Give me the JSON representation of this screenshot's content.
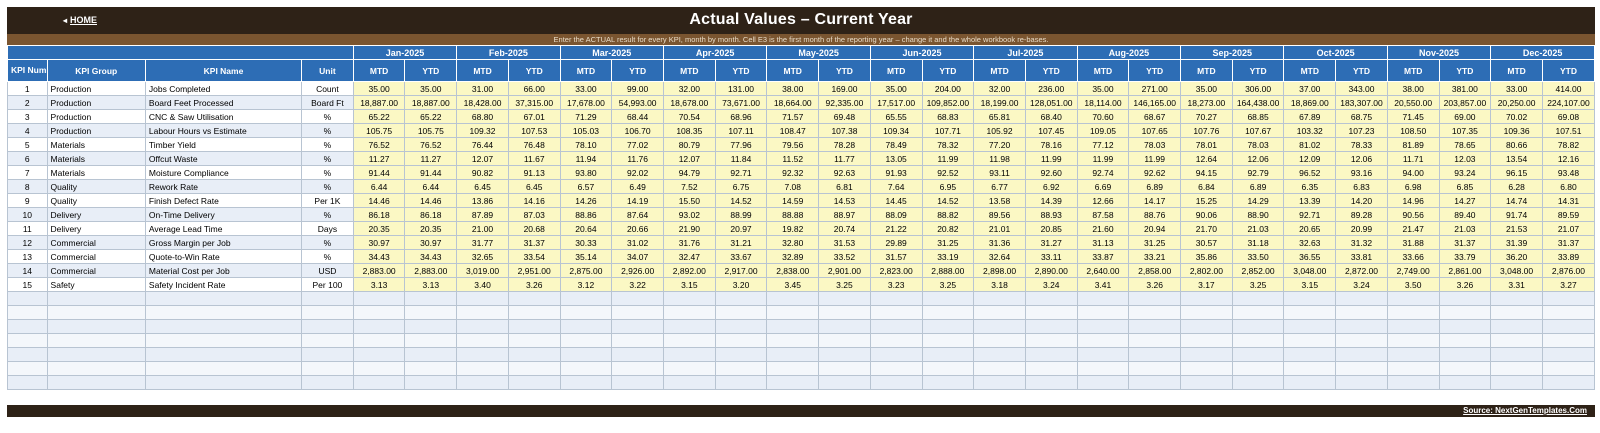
{
  "header": {
    "home_label": "HOME",
    "title": "Actual Values  –  Current Year",
    "subtitle": "Enter the ACTUAL result for every KPI, month by month. Cell E3 is the first month of the reporting year – change it and the whole workbook re-bases."
  },
  "table": {
    "col_kpi_number": "KPI Number",
    "col_kpi_group": "KPI Group",
    "col_kpi_name": "KPI Name",
    "col_unit": "Unit",
    "mtd_label": "MTD",
    "ytd_label": "YTD",
    "months": [
      "Jan-2025",
      "Feb-2025",
      "Mar-2025",
      "Apr-2025",
      "May-2025",
      "Jun-2025",
      "Jul-2025",
      "Aug-2025",
      "Sep-2025",
      "Oct-2025",
      "Nov-2025",
      "Dec-2025"
    ],
    "rows": [
      {
        "num": "1",
        "group": "Production",
        "name": "Jobs Completed",
        "unit": "Count",
        "values": [
          "35.00",
          "35.00",
          "31.00",
          "66.00",
          "33.00",
          "99.00",
          "32.00",
          "131.00",
          "38.00",
          "169.00",
          "35.00",
          "204.00",
          "32.00",
          "236.00",
          "35.00",
          "271.00",
          "35.00",
          "306.00",
          "37.00",
          "343.00",
          "38.00",
          "381.00",
          "33.00",
          "414.00"
        ]
      },
      {
        "num": "2",
        "group": "Production",
        "name": "Board Feet Processed",
        "unit": "Board Ft",
        "values": [
          "18,887.00",
          "18,887.00",
          "18,428.00",
          "37,315.00",
          "17,678.00",
          "54,993.00",
          "18,678.00",
          "73,671.00",
          "18,664.00",
          "92,335.00",
          "17,517.00",
          "109,852.00",
          "18,199.00",
          "128,051.00",
          "18,114.00",
          "146,165.00",
          "18,273.00",
          "164,438.00",
          "18,869.00",
          "183,307.00",
          "20,550.00",
          "203,857.00",
          "20,250.00",
          "224,107.00"
        ]
      },
      {
        "num": "3",
        "group": "Production",
        "name": "CNC & Saw Utilisation",
        "unit": "%",
        "values": [
          "65.22",
          "65.22",
          "68.80",
          "67.01",
          "71.29",
          "68.44",
          "70.54",
          "68.96",
          "71.57",
          "69.48",
          "65.55",
          "68.83",
          "65.81",
          "68.40",
          "70.60",
          "68.67",
          "70.27",
          "68.85",
          "67.89",
          "68.75",
          "71.45",
          "69.00",
          "70.02",
          "69.08"
        ]
      },
      {
        "num": "4",
        "group": "Production",
        "name": "Labour Hours vs Estimate",
        "unit": "%",
        "values": [
          "105.75",
          "105.75",
          "109.32",
          "107.53",
          "105.03",
          "106.70",
          "108.35",
          "107.11",
          "108.47",
          "107.38",
          "109.34",
          "107.71",
          "105.92",
          "107.45",
          "109.05",
          "107.65",
          "107.76",
          "107.67",
          "103.32",
          "107.23",
          "108.50",
          "107.35",
          "109.36",
          "107.51"
        ]
      },
      {
        "num": "5",
        "group": "Materials",
        "name": "Timber Yield",
        "unit": "%",
        "values": [
          "76.52",
          "76.52",
          "76.44",
          "76.48",
          "78.10",
          "77.02",
          "80.79",
          "77.96",
          "79.56",
          "78.28",
          "78.49",
          "78.32",
          "77.20",
          "78.16",
          "77.12",
          "78.03",
          "78.01",
          "78.03",
          "81.02",
          "78.33",
          "81.89",
          "78.65",
          "80.66",
          "78.82"
        ]
      },
      {
        "num": "6",
        "group": "Materials",
        "name": "Offcut Waste",
        "unit": "%",
        "values": [
          "11.27",
          "11.27",
          "12.07",
          "11.67",
          "11.94",
          "11.76",
          "12.07",
          "11.84",
          "11.52",
          "11.77",
          "13.05",
          "11.99",
          "11.98",
          "11.99",
          "11.99",
          "11.99",
          "12.64",
          "12.06",
          "12.09",
          "12.06",
          "11.71",
          "12.03",
          "13.54",
          "12.16"
        ]
      },
      {
        "num": "7",
        "group": "Materials",
        "name": "Moisture Compliance",
        "unit": "%",
        "values": [
          "91.44",
          "91.44",
          "90.82",
          "91.13",
          "93.80",
          "92.02",
          "94.79",
          "92.71",
          "92.32",
          "92.63",
          "91.93",
          "92.52",
          "93.11",
          "92.60",
          "92.74",
          "92.62",
          "94.15",
          "92.79",
          "96.52",
          "93.16",
          "94.00",
          "93.24",
          "96.15",
          "93.48"
        ]
      },
      {
        "num": "8",
        "group": "Quality",
        "name": "Rework Rate",
        "unit": "%",
        "values": [
          "6.44",
          "6.44",
          "6.45",
          "6.45",
          "6.57",
          "6.49",
          "7.52",
          "6.75",
          "7.08",
          "6.81",
          "7.64",
          "6.95",
          "6.77",
          "6.92",
          "6.69",
          "6.89",
          "6.84",
          "6.89",
          "6.35",
          "6.83",
          "6.98",
          "6.85",
          "6.28",
          "6.80"
        ]
      },
      {
        "num": "9",
        "group": "Quality",
        "name": "Finish Defect Rate",
        "unit": "Per 1K",
        "values": [
          "14.46",
          "14.46",
          "13.86",
          "14.16",
          "14.26",
          "14.19",
          "15.50",
          "14.52",
          "14.59",
          "14.53",
          "14.45",
          "14.52",
          "13.58",
          "14.39",
          "12.66",
          "14.17",
          "15.25",
          "14.29",
          "13.39",
          "14.20",
          "14.96",
          "14.27",
          "14.74",
          "14.31"
        ]
      },
      {
        "num": "10",
        "group": "Delivery",
        "name": "On-Time Delivery",
        "unit": "%",
        "values": [
          "86.18",
          "86.18",
          "87.89",
          "87.03",
          "88.86",
          "87.64",
          "93.02",
          "88.99",
          "88.88",
          "88.97",
          "88.09",
          "88.82",
          "89.56",
          "88.93",
          "87.58",
          "88.76",
          "90.06",
          "88.90",
          "92.71",
          "89.28",
          "90.56",
          "89.40",
          "91.74",
          "89.59"
        ]
      },
      {
        "num": "11",
        "group": "Delivery",
        "name": "Average Lead Time",
        "unit": "Days",
        "values": [
          "20.35",
          "20.35",
          "21.00",
          "20.68",
          "20.64",
          "20.66",
          "21.90",
          "20.97",
          "19.82",
          "20.74",
          "21.22",
          "20.82",
          "21.01",
          "20.85",
          "21.60",
          "20.94",
          "21.70",
          "21.03",
          "20.65",
          "20.99",
          "21.47",
          "21.03",
          "21.53",
          "21.07"
        ]
      },
      {
        "num": "12",
        "group": "Commercial",
        "name": "Gross Margin per Job",
        "unit": "%",
        "values": [
          "30.97",
          "30.97",
          "31.77",
          "31.37",
          "30.33",
          "31.02",
          "31.76",
          "31.21",
          "32.80",
          "31.53",
          "29.89",
          "31.25",
          "31.36",
          "31.27",
          "31.13",
          "31.25",
          "30.57",
          "31.18",
          "32.63",
          "31.32",
          "31.88",
          "31.37",
          "31.39",
          "31.37"
        ]
      },
      {
        "num": "13",
        "group": "Commercial",
        "name": "Quote-to-Win Rate",
        "unit": "%",
        "values": [
          "34.43",
          "34.43",
          "32.65",
          "33.54",
          "35.14",
          "34.07",
          "32.47",
          "33.67",
          "32.89",
          "33.52",
          "31.57",
          "33.19",
          "32.64",
          "33.11",
          "33.87",
          "33.21",
          "35.86",
          "33.50",
          "36.55",
          "33.81",
          "33.66",
          "33.79",
          "36.20",
          "33.89"
        ]
      },
      {
        "num": "14",
        "group": "Commercial",
        "name": "Material Cost per Job",
        "unit": "USD",
        "values": [
          "2,883.00",
          "2,883.00",
          "3,019.00",
          "2,951.00",
          "2,875.00",
          "2,926.00",
          "2,892.00",
          "2,917.00",
          "2,838.00",
          "2,901.00",
          "2,823.00",
          "2,888.00",
          "2,898.00",
          "2,890.00",
          "2,640.00",
          "2,858.00",
          "2,802.00",
          "2,852.00",
          "3,048.00",
          "2,872.00",
          "2,749.00",
          "2,861.00",
          "3,048.00",
          "2,876.00"
        ]
      },
      {
        "num": "15",
        "group": "Safety",
        "name": "Safety Incident Rate",
        "unit": "Per 100",
        "values": [
          "3.13",
          "3.13",
          "3.40",
          "3.26",
          "3.12",
          "3.22",
          "3.15",
          "3.20",
          "3.45",
          "3.25",
          "3.23",
          "3.25",
          "3.18",
          "3.24",
          "3.41",
          "3.26",
          "3.17",
          "3.25",
          "3.15",
          "3.24",
          "3.50",
          "3.26",
          "3.31",
          "3.27"
        ]
      }
    ]
  },
  "footer": {
    "source": "Source: NextGenTemplates.Com"
  }
}
